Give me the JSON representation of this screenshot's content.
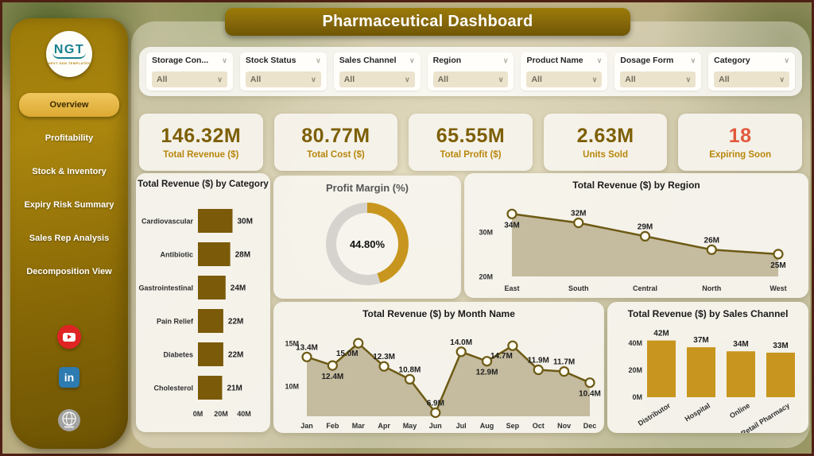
{
  "app": {
    "title": "Pharmaceutical Dashboard"
  },
  "colors": {
    "accent_gold_dark": "#7b5a09",
    "accent_gold": "#c8961e",
    "kpi_value": "#7d5f05",
    "kpi_label": "#b8860b",
    "alert": "#e2593c"
  },
  "sidebar": {
    "logo": {
      "text": "NGT",
      "subtext": "NEXT GEN TEMPLATES"
    },
    "items": [
      {
        "label": "Overview",
        "active": true
      },
      {
        "label": "Profitability",
        "active": false
      },
      {
        "label": "Stock & Inventory",
        "active": false
      },
      {
        "label": "Expiry Risk Summary",
        "active": false
      },
      {
        "label": "Sales Rep Analysis",
        "active": false
      },
      {
        "label": "Decomposition View",
        "active": false
      }
    ],
    "social": [
      "youtube",
      "linkedin",
      "website"
    ]
  },
  "filters": [
    {
      "label": "Storage Con...",
      "value": "All"
    },
    {
      "label": "Stock Status",
      "value": "All"
    },
    {
      "label": "Sales Channel",
      "value": "All"
    },
    {
      "label": "Region",
      "value": "All"
    },
    {
      "label": "Product Name",
      "value": "All"
    },
    {
      "label": "Dosage Form",
      "value": "All"
    },
    {
      "label": "Category",
      "value": "All"
    }
  ],
  "kpis": [
    {
      "value": "146.32M",
      "label": "Total Revenue ($)",
      "value_color": "#7d5f05"
    },
    {
      "value": "80.77M",
      "label": "Total Cost ($)",
      "value_color": "#7d5f05"
    },
    {
      "value": "65.55M",
      "label": "Total Profit ($)",
      "value_color": "#7d5f05"
    },
    {
      "value": "2.63M",
      "label": "Units Sold",
      "value_color": "#7d5f05"
    },
    {
      "value": "18",
      "label": "Expiring Soon",
      "value_color": "#e2593c"
    }
  ],
  "chart_data": [
    {
      "id": "category",
      "type": "bar",
      "orientation": "horizontal",
      "title": "Total Revenue ($) by Category",
      "categories": [
        "Cardiovascular",
        "Antibiotic",
        "Gastrointestinal",
        "Pain Relief",
        "Diabetes",
        "Cholesterol"
      ],
      "values": [
        30,
        28,
        24,
        22,
        22,
        21
      ],
      "data_labels": [
        "30M",
        "28M",
        "24M",
        "22M",
        "22M",
        "21M"
      ],
      "x_ticks": [
        {
          "value": 0,
          "label": "0M"
        },
        {
          "value": 20,
          "label": "20M"
        },
        {
          "value": 40,
          "label": "40M"
        }
      ],
      "xlim": [
        0,
        40
      ],
      "bar_color": "#7b5a09"
    },
    {
      "id": "profit_margin",
      "type": "donut",
      "title": "Profit Margin (%)",
      "value": 44.8,
      "center_label": "44.80%",
      "arc_color": "#c8961e",
      "track_color": "#d6d3cf"
    },
    {
      "id": "region",
      "type": "area",
      "title": "Total Revenue ($) by Region",
      "categories": [
        "East",
        "South",
        "Central",
        "North",
        "West"
      ],
      "values": [
        34,
        32,
        29,
        26,
        25
      ],
      "data_labels": [
        "34M",
        "32M",
        "29M",
        "26M",
        "25M"
      ],
      "label_pos": [
        "below",
        "above",
        "above",
        "above",
        "below"
      ],
      "y_ticks": [
        {
          "value": 30,
          "label": "30M"
        },
        {
          "value": 20,
          "label": "20M"
        }
      ],
      "ylim": [
        20,
        36
      ],
      "line_color": "#6d5a14",
      "fill_color": "#b9ad8c",
      "marker_fill": "#fffdf4"
    },
    {
      "id": "month",
      "type": "area",
      "title": "Total Revenue ($) by Month Name",
      "categories": [
        "Jan",
        "Feb",
        "Mar",
        "Apr",
        "May",
        "Jun",
        "Jul",
        "Aug",
        "Sep",
        "Oct",
        "Nov",
        "Dec"
      ],
      "values": [
        13.4,
        12.4,
        15.0,
        12.3,
        10.8,
        6.9,
        14.0,
        12.9,
        14.7,
        11.9,
        11.7,
        10.4
      ],
      "data_labels": [
        "13.4M",
        "12.4M",
        "15.0M",
        "12.3M",
        "10.8M",
        "6.9M",
        "14.0M",
        "12.9M",
        "14.7M",
        "11.9M",
        "11.7M",
        "10.4M"
      ],
      "label_pos": [
        "above",
        "below",
        "below-left",
        "above",
        "above",
        "above",
        "above",
        "below",
        "below-left",
        "above",
        "above",
        "below"
      ],
      "y_ticks": [
        {
          "value": 15,
          "label": "15M"
        },
        {
          "value": 10,
          "label": "10M"
        }
      ],
      "ylim": [
        6,
        16
      ],
      "line_color": "#6d5a14",
      "fill_color": "#b9ad8c",
      "marker_fill": "#fffdf4"
    },
    {
      "id": "sales_channel",
      "type": "bar",
      "orientation": "vertical",
      "title": "Total Revenue ($) by Sales Channel",
      "categories": [
        "Distributor",
        "Hospital",
        "Online",
        "Retail Pharmacy"
      ],
      "values": [
        42,
        37,
        34,
        33
      ],
      "data_labels": [
        "42M",
        "37M",
        "34M",
        "33M"
      ],
      "y_ticks": [
        {
          "value": 40,
          "label": "40M"
        },
        {
          "value": 20,
          "label": "20M"
        },
        {
          "value": 0,
          "label": "0M"
        }
      ],
      "ylim": [
        0,
        45
      ],
      "bar_color": "#c8961e"
    }
  ]
}
